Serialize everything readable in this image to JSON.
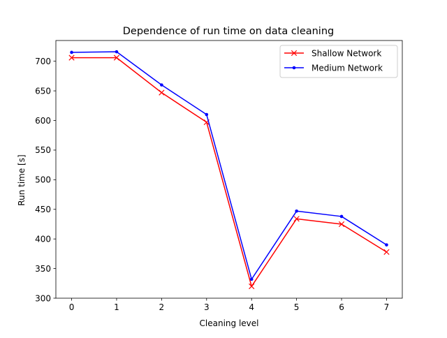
{
  "chart_data": {
    "type": "line",
    "title": "Dependence of run time on data cleaning",
    "xlabel": "Cleaning level",
    "ylabel": "Run time [s]",
    "x": [
      0,
      1,
      2,
      3,
      4,
      5,
      6,
      7
    ],
    "xlim": [
      -0.35,
      7.35
    ],
    "ylim": [
      300,
      735
    ],
    "xticks": [
      0,
      1,
      2,
      3,
      4,
      5,
      6,
      7
    ],
    "yticks": [
      300,
      350,
      400,
      450,
      500,
      550,
      600,
      650,
      700
    ],
    "grid": false,
    "legend_position": "top-right",
    "series": [
      {
        "name": "Shallow Network",
        "color": "#ff0000",
        "marker": "x",
        "values": [
          706,
          706,
          647,
          597,
          320,
          434,
          425,
          378
        ]
      },
      {
        "name": "Medium Network",
        "color": "#0000ff",
        "marker": "dot",
        "values": [
          715,
          716,
          660,
          610,
          332,
          447,
          438,
          390
        ]
      }
    ]
  }
}
